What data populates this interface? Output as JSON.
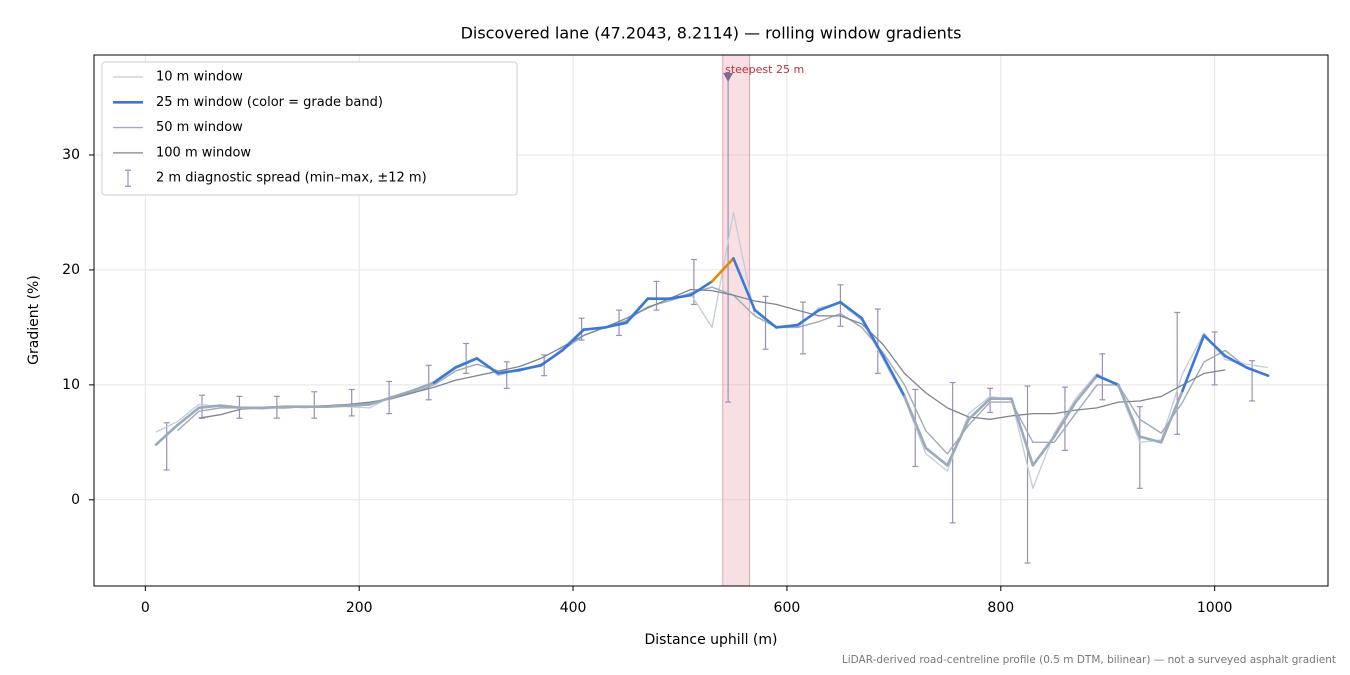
{
  "chart_data": {
    "type": "line",
    "title": "Discovered lane (47.2043, 8.2114) — rolling window gradients",
    "xlabel": "Distance uphill (m)",
    "ylabel": "Gradient (%)",
    "footnote": "LiDAR-derived road-centreline profile (0.5 m DTM, bilinear) — not a surveyed asphalt gradient",
    "x": [
      10,
      30,
      50,
      70,
      90,
      110,
      130,
      150,
      170,
      190,
      210,
      230,
      250,
      270,
      290,
      310,
      330,
      350,
      370,
      390,
      410,
      430,
      450,
      470,
      490,
      510,
      530,
      550,
      570,
      590,
      610,
      630,
      650,
      670,
      690,
      710,
      730,
      750,
      770,
      790,
      810,
      830,
      850,
      870,
      890,
      910,
      930,
      950,
      970,
      990,
      1010,
      1030,
      1050
    ],
    "series": [
      {
        "name": "10 m window",
        "color": "#c4ccd8",
        "width": 1.3,
        "values": [
          5.9,
          6.8,
          8.3,
          8.1,
          8.0,
          7.9,
          8.1,
          8.0,
          8.2,
          8.1,
          8.0,
          9.0,
          9.4,
          10.3,
          11.6,
          12.4,
          10.8,
          11.4,
          11.6,
          13.2,
          14.9,
          14.9,
          15.6,
          17.6,
          17.3,
          17.9,
          15.0,
          25.0,
          16.0,
          15.1,
          15.0,
          16.7,
          17.1,
          15.6,
          12.2,
          8.8,
          4.0,
          2.5,
          7.5,
          9.0,
          8.7,
          1.0,
          5.8,
          8.8,
          11.0,
          9.8,
          5.0,
          5.2,
          11.0,
          14.5,
          12.2,
          11.8,
          11.5
        ]
      },
      {
        "name": "25 m window (color = grade band)",
        "color": "#3a78d8",
        "width": 2.6,
        "grade_bands": {
          "thresholds": [
            10,
            20
          ],
          "colors": [
            "#9aaabb",
            "#3a78d8",
            "#e08a00"
          ]
        },
        "values": [
          4.8,
          6.5,
          8.0,
          8.2,
          8.0,
          8.0,
          8.1,
          8.1,
          8.1,
          8.2,
          8.3,
          8.9,
          9.5,
          10.2,
          11.5,
          12.3,
          11.0,
          11.3,
          11.7,
          13.0,
          14.8,
          15.0,
          15.4,
          17.5,
          17.5,
          17.8,
          19.0,
          21.0,
          16.5,
          15.0,
          15.2,
          16.5,
          17.2,
          15.8,
          12.5,
          9.0,
          4.5,
          3.0,
          7.0,
          8.8,
          8.8,
          3.0,
          5.5,
          8.5,
          10.8,
          10.0,
          5.5,
          5.0,
          9.5,
          14.3,
          12.5,
          11.5,
          10.8
        ]
      },
      {
        "name": "50 m window",
        "color": "#a0aab8",
        "width": 1.4,
        "values": [
          null,
          6.0,
          7.7,
          8.0,
          8.0,
          8.0,
          8.0,
          8.1,
          8.1,
          8.2,
          8.4,
          8.8,
          9.3,
          10.0,
          11.2,
          11.8,
          11.2,
          11.2,
          11.8,
          13.0,
          14.3,
          15.0,
          15.6,
          16.8,
          17.3,
          18.0,
          18.5,
          17.8,
          16.0,
          15.0,
          15.0,
          15.5,
          16.2,
          15.0,
          12.8,
          10.0,
          6.0,
          4.0,
          6.5,
          8.5,
          8.5,
          5.0,
          5.0,
          7.5,
          10.0,
          10.0,
          7.0,
          5.8,
          8.5,
          12.0,
          13.0,
          11.5,
          null
        ]
      },
      {
        "name": "100 m window",
        "color": "#7d8593",
        "width": 1.3,
        "values": [
          null,
          null,
          7.1,
          7.4,
          7.9,
          8.0,
          8.0,
          8.1,
          8.2,
          8.3,
          8.5,
          8.8,
          9.3,
          9.8,
          10.4,
          10.8,
          11.2,
          11.6,
          12.3,
          13.3,
          14.3,
          15.0,
          15.8,
          16.7,
          17.5,
          18.3,
          18.2,
          17.8,
          17.3,
          17.0,
          16.5,
          16.0,
          16.0,
          15.3,
          13.5,
          11.0,
          9.3,
          8.0,
          7.2,
          7.0,
          7.3,
          7.5,
          7.5,
          7.8,
          8.0,
          8.5,
          8.6,
          9.0,
          10.0,
          11.0,
          11.3,
          null,
          null
        ]
      }
    ],
    "errorbars": {
      "name": "2 m diagnostic spread (min–max, ±12 m)",
      "color": "#9990b8",
      "x": [
        20,
        53,
        88,
        123,
        158,
        193,
        228,
        265,
        300,
        338,
        373,
        408,
        443,
        478,
        513,
        545,
        580,
        615,
        650,
        685,
        720,
        755,
        790,
        825,
        860,
        895,
        930,
        965,
        1000,
        1035
      ],
      "low": [
        2.6,
        7.1,
        7.1,
        7.1,
        7.1,
        7.3,
        7.5,
        8.7,
        11.0,
        9.7,
        10.8,
        13.9,
        14.3,
        16.5,
        17.0,
        8.5,
        13.1,
        12.7,
        15.1,
        11.0,
        2.9,
        -2.0,
        7.6,
        -5.5,
        4.3,
        8.7,
        1.0,
        5.7,
        10.0,
        8.6
      ],
      "high": [
        6.7,
        9.1,
        9.0,
        9.0,
        9.4,
        9.6,
        10.3,
        11.7,
        13.6,
        12.0,
        12.6,
        15.8,
        16.5,
        19.0,
        20.9,
        37.0,
        17.7,
        17.2,
        18.7,
        16.6,
        9.6,
        10.2,
        9.7,
        9.9,
        9.8,
        12.7,
        8.1,
        16.3,
        14.6,
        12.1
      ]
    },
    "highlight": {
      "span": [
        540,
        565
      ],
      "color": "#e8a4ac",
      "label": "steepest 25 m",
      "label_color": "#c0303a",
      "marker": [
        545,
        36.8
      ],
      "marker_color": "#7a6a9a"
    },
    "xlim": [
      -48,
      1106
    ],
    "ylim": [
      -7.5,
      38.7
    ],
    "xticks": [
      0,
      200,
      400,
      600,
      800,
      1000
    ],
    "yticks": [
      0,
      10,
      20,
      30
    ],
    "grid": true,
    "legend": "upper left"
  }
}
